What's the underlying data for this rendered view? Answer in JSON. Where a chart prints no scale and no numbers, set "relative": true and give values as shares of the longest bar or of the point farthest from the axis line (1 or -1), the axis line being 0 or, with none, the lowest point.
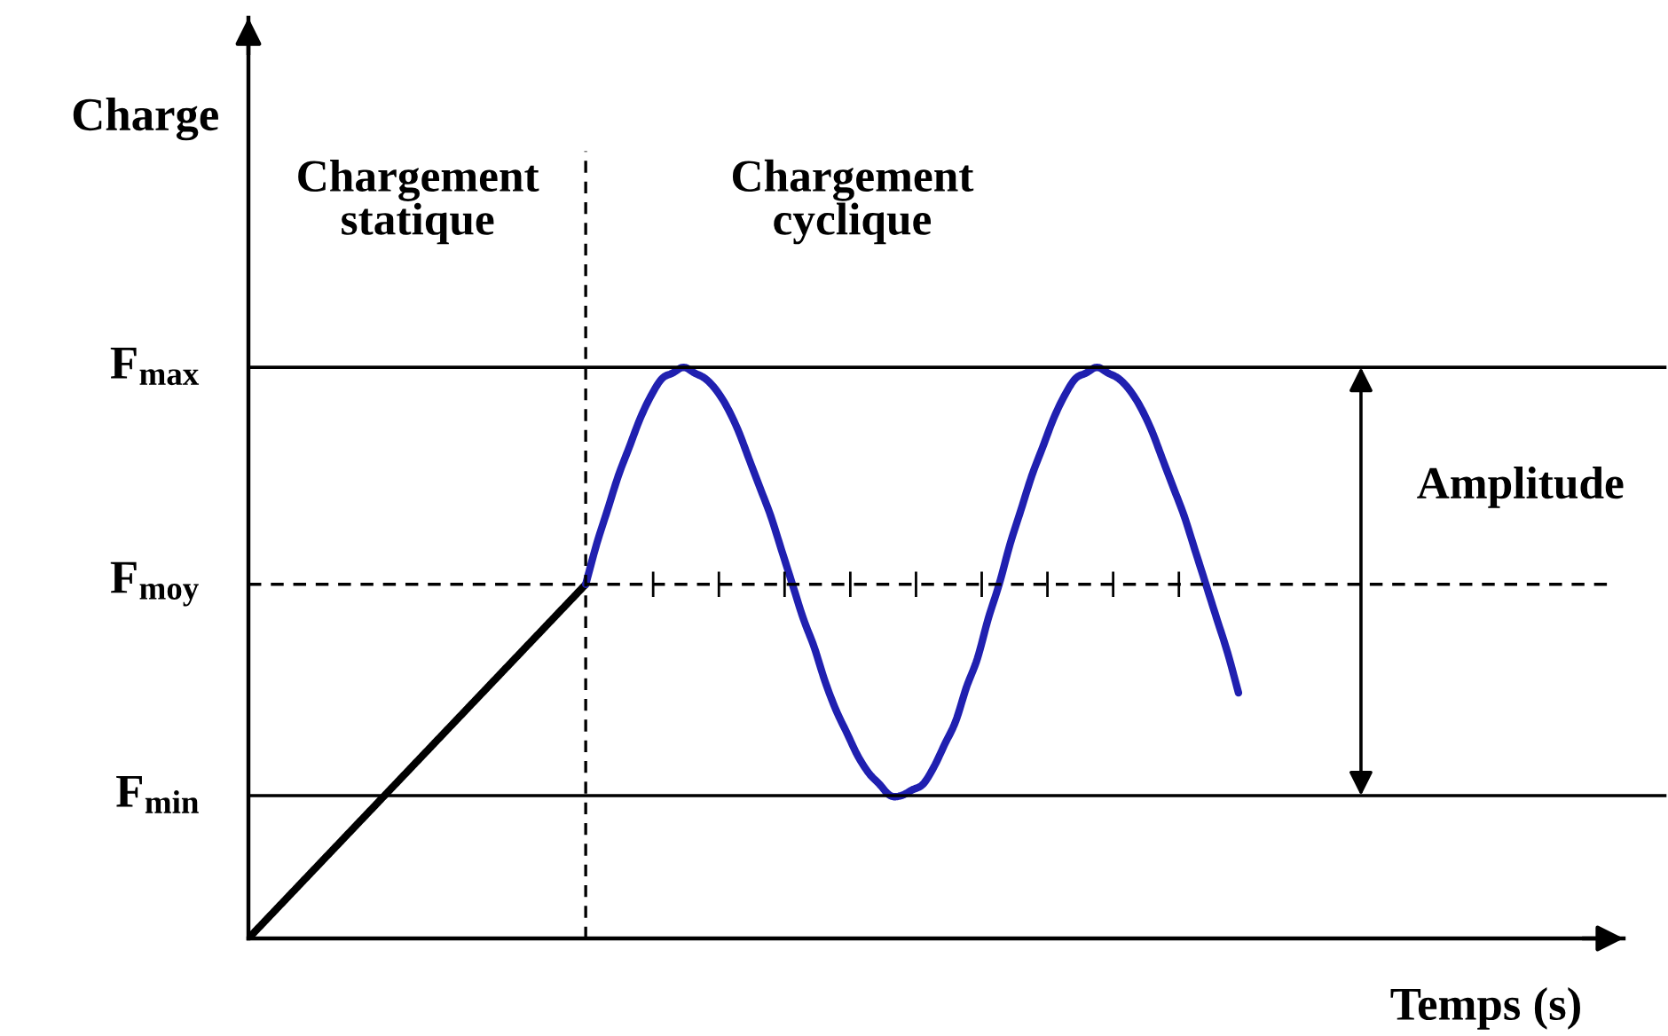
{
  "chart_data": {
    "type": "line",
    "relative": true,
    "xlabel": "Temps (s)",
    "ylabel": "Charge",
    "categories": [
      null,
      null,
      null,
      null,
      null,
      null,
      null,
      null,
      null,
      null,
      null,
      null,
      null,
      null,
      null,
      null,
      null,
      null,
      null,
      null,
      null,
      null,
      null,
      null,
      null,
      null,
      null,
      null,
      null,
      null,
      null,
      null,
      null,
      null,
      null,
      null,
      null,
      null,
      null,
      null,
      null,
      null,
      null,
      null,
      null,
      null,
      null,
      null,
      null,
      null,
      null,
      null,
      null,
      null,
      null,
      null,
      null,
      null,
      null,
      null,
      null,
      null,
      null,
      null,
      null,
      null,
      null,
      null,
      null,
      null,
      null,
      null,
      null,
      null,
      null,
      null,
      null,
      null,
      null,
      null,
      null,
      null,
      null,
      null,
      null,
      null,
      null,
      null,
      null,
      null,
      null,
      null
    ],
    "series": [
      {
        "color": "#000000",
        "values": [
          0,
          0.02,
          0.04,
          0.06,
          0.08,
          0.1,
          0.12,
          0.14,
          0.16,
          0.18,
          0.2,
          0.22,
          0.24,
          0.26,
          0.28,
          0.3,
          0.32,
          0.34,
          0.36,
          0.38,
          0.4,
          0.42,
          0.44,
          0.46,
          0.48,
          0.5,
          0.52,
          0.54,
          0.56,
          0.58,
          0.6,
          0.62,
          null,
          null,
          null,
          null,
          null,
          null,
          null,
          null,
          null,
          null,
          null,
          null,
          null,
          null,
          null,
          null,
          null,
          null,
          null,
          null,
          null,
          null,
          null,
          null,
          null,
          null,
          null,
          null,
          null,
          null,
          null,
          null,
          null,
          null,
          null,
          null,
          null,
          null,
          null,
          null,
          null,
          null,
          null,
          null,
          null,
          null,
          null,
          null,
          null,
          null,
          null,
          null,
          null,
          null,
          null,
          null,
          null,
          null,
          null,
          null
        ]
      },
      {
        "color": "#2020b0",
        "values": [
          null,
          null,
          null,
          null,
          null,
          null,
          null,
          null,
          null,
          null,
          null,
          null,
          null,
          null,
          null,
          null,
          null,
          null,
          null,
          null,
          null,
          null,
          null,
          null,
          null,
          null,
          null,
          null,
          null,
          null,
          null,
          0.62,
          0.69,
          0.75,
          0.81,
          0.86,
          0.91,
          0.95,
          0.98,
          0.99,
          1.0,
          0.99,
          0.98,
          0.96,
          0.93,
          0.89,
          0.84,
          0.79,
          0.74,
          0.68,
          0.62,
          0.56,
          0.51,
          0.45,
          0.4,
          0.36,
          0.32,
          0.29,
          0.27,
          0.25,
          0.25,
          0.26,
          0.27,
          0.3,
          0.34,
          0.38,
          0.44,
          0.49,
          0.56,
          0.62,
          0.69,
          0.75,
          0.81,
          0.86,
          0.91,
          0.95,
          0.98,
          0.99,
          1.0,
          0.99,
          0.98,
          0.96,
          0.93,
          0.89,
          0.84,
          0.79,
          0.74,
          0.68,
          0.62,
          0.56,
          0.5,
          0.43
        ]
      }
    ],
    "ref_lines": [
      {
        "axis": "y",
        "value": 1.0,
        "label": "F$_{max}$",
        "color": "#000000",
        "line_style": "solid"
      },
      {
        "axis": "y",
        "value": 0.62,
        "label": "F$_{moy}$",
        "color": "#000000",
        "line_style": "dashed"
      },
      {
        "axis": "y",
        "value": 0.25,
        "label": "F$_{min}$",
        "color": "#000000",
        "line_style": "solid"
      }
    ],
    "annotations": [
      "Chargement\nstatique",
      "Chargement\ncyclique",
      "Amplitude"
    ]
  }
}
